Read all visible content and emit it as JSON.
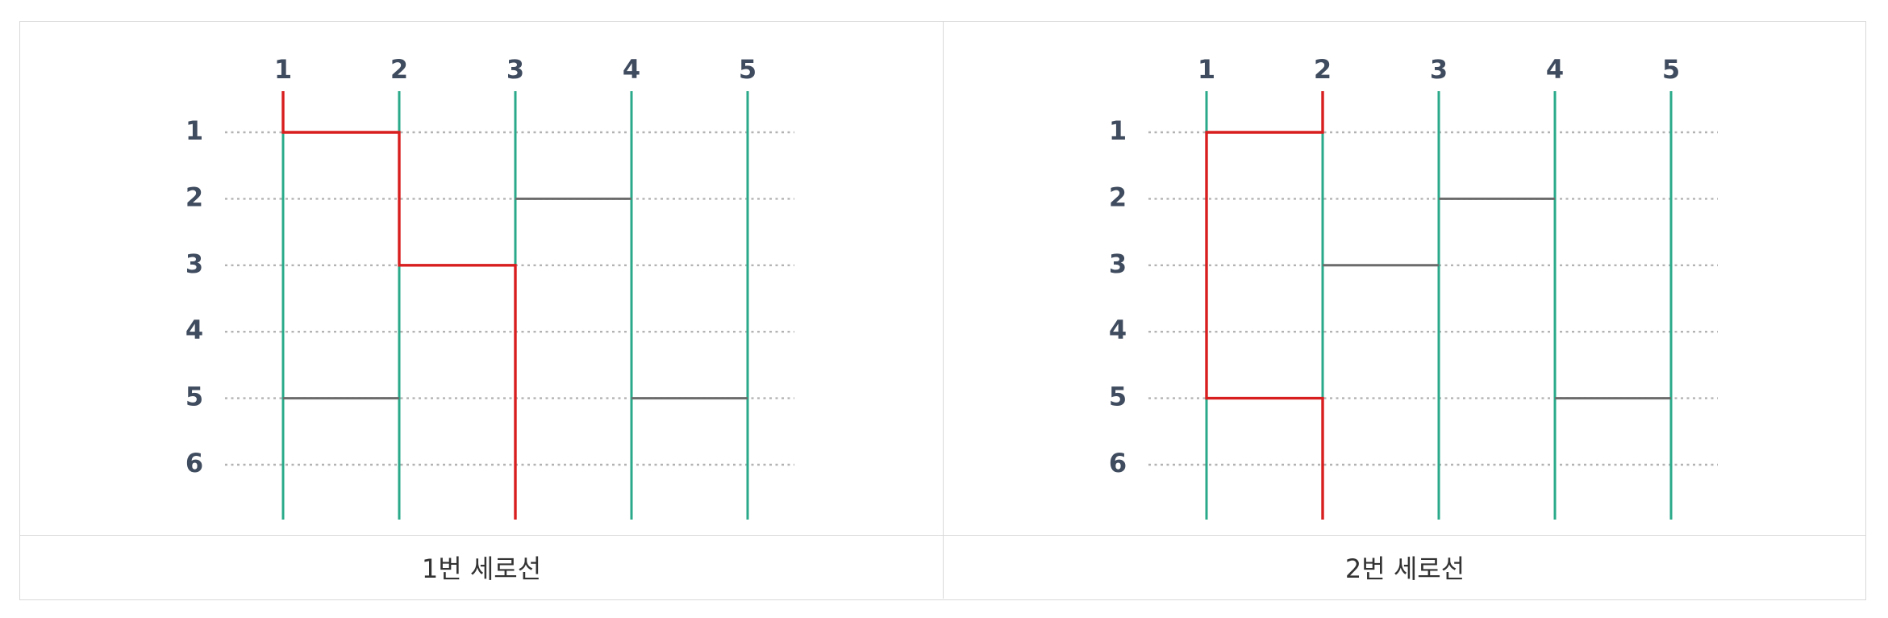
{
  "colors": {
    "vertical_line": "#2aaa8a",
    "active_path": "#d81e1e",
    "rung": "#6b6b6b",
    "row_guide": "#b3b3b3",
    "label": "#3f4b5e"
  },
  "panels": [
    {
      "caption": "1번 세로선",
      "columns": [
        "1",
        "2",
        "3",
        "4",
        "5"
      ],
      "rows": [
        "1",
        "2",
        "3",
        "4",
        "5",
        "6"
      ],
      "start_column": 1,
      "rungs": [
        {
          "row": 1,
          "from_column": 1,
          "to_column": 2,
          "on_path": true
        },
        {
          "row": 2,
          "from_column": 3,
          "to_column": 4,
          "on_path": false
        },
        {
          "row": 3,
          "from_column": 2,
          "to_column": 3,
          "on_path": true
        },
        {
          "row": 5,
          "from_column": 1,
          "to_column": 2,
          "on_path": false
        },
        {
          "row": 5,
          "from_column": 4,
          "to_column": 5,
          "on_path": false
        }
      ],
      "end_column": 3
    },
    {
      "caption": "2번 세로선",
      "columns": [
        "1",
        "2",
        "3",
        "4",
        "5"
      ],
      "rows": [
        "1",
        "2",
        "3",
        "4",
        "5",
        "6"
      ],
      "start_column": 2,
      "rungs": [
        {
          "row": 1,
          "from_column": 1,
          "to_column": 2,
          "on_path": true
        },
        {
          "row": 2,
          "from_column": 3,
          "to_column": 4,
          "on_path": false
        },
        {
          "row": 3,
          "from_column": 2,
          "to_column": 3,
          "on_path": false
        },
        {
          "row": 5,
          "from_column": 1,
          "to_column": 2,
          "on_path": true
        },
        {
          "row": 5,
          "from_column": 4,
          "to_column": 5,
          "on_path": false
        }
      ],
      "end_column": 2
    }
  ]
}
